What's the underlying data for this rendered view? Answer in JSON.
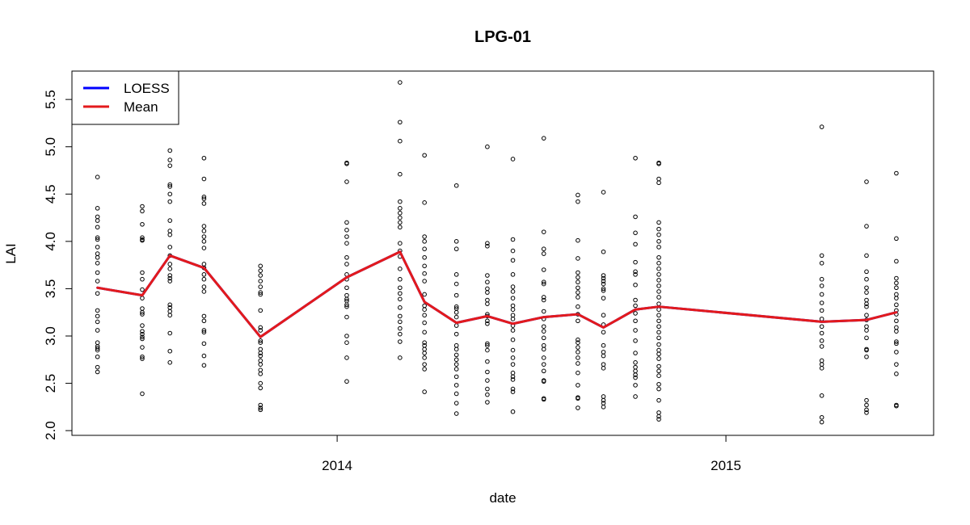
{
  "chart_data": {
    "type": "scatter",
    "title": "LPG-01",
    "xlabel": "date",
    "ylabel": "LAI",
    "x_axis_type": "date",
    "xlim": [
      "2013-04-27",
      "2015-07-15"
    ],
    "ylim": [
      1.95,
      5.8
    ],
    "x_ticks": [
      {
        "date": "2014-01-01",
        "label": "2014"
      },
      {
        "date": "2015-01-01",
        "label": "2015"
      }
    ],
    "y_ticks": [
      {
        "value": 2.0,
        "label": "2.0"
      },
      {
        "value": 2.5,
        "label": "2.5"
      },
      {
        "value": 3.0,
        "label": "3.0"
      },
      {
        "value": 3.5,
        "label": "3.5"
      },
      {
        "value": 4.0,
        "label": "4.0"
      },
      {
        "value": 4.5,
        "label": "4.5"
      },
      {
        "value": 5.0,
        "label": "5.0"
      },
      {
        "value": 5.5,
        "label": "5.5"
      }
    ],
    "grid": false,
    "legend": {
      "position": "top-left",
      "entries": [
        {
          "label": "LOESS",
          "color": "#0000ff"
        },
        {
          "label": "Mean",
          "color": "#e31a1c"
        }
      ]
    },
    "series": [
      {
        "name": "LOESS",
        "kind": "line",
        "color": "#0000ff",
        "points": [
          {
            "x": "2013-05-21",
            "y": 3.51
          },
          {
            "x": "2013-07-02",
            "y": 3.43
          },
          {
            "x": "2013-07-28",
            "y": 3.85
          },
          {
            "x": "2013-08-29",
            "y": 3.72
          },
          {
            "x": "2013-10-21",
            "y": 2.99
          },
          {
            "x": "2014-01-10",
            "y": 3.62
          },
          {
            "x": "2014-03-01",
            "y": 3.89
          },
          {
            "x": "2014-03-24",
            "y": 3.36
          },
          {
            "x": "2014-04-23",
            "y": 3.14
          },
          {
            "x": "2014-05-22",
            "y": 3.21
          },
          {
            "x": "2014-06-15",
            "y": 3.13
          },
          {
            "x": "2014-07-14",
            "y": 3.2
          },
          {
            "x": "2014-08-15",
            "y": 3.23
          },
          {
            "x": "2014-09-08",
            "y": 3.09
          },
          {
            "x": "2014-10-08",
            "y": 3.28
          },
          {
            "x": "2014-10-30",
            "y": 3.31
          },
          {
            "x": "2015-04-01",
            "y": 3.15
          },
          {
            "x": "2015-05-13",
            "y": 3.17
          },
          {
            "x": "2015-06-10",
            "y": 3.25
          }
        ]
      },
      {
        "name": "Mean",
        "kind": "line",
        "color": "#e31a1c",
        "points": [
          {
            "x": "2013-05-21",
            "y": 3.51
          },
          {
            "x": "2013-07-02",
            "y": 3.43
          },
          {
            "x": "2013-07-28",
            "y": 3.85
          },
          {
            "x": "2013-08-29",
            "y": 3.72
          },
          {
            "x": "2013-10-21",
            "y": 2.99
          },
          {
            "x": "2014-01-10",
            "y": 3.62
          },
          {
            "x": "2014-03-01",
            "y": 3.89
          },
          {
            "x": "2014-03-24",
            "y": 3.36
          },
          {
            "x": "2014-04-23",
            "y": 3.14
          },
          {
            "x": "2014-05-22",
            "y": 3.21
          },
          {
            "x": "2014-06-15",
            "y": 3.13
          },
          {
            "x": "2014-07-14",
            "y": 3.2
          },
          {
            "x": "2014-08-15",
            "y": 3.23
          },
          {
            "x": "2014-09-08",
            "y": 3.09
          },
          {
            "x": "2014-10-08",
            "y": 3.28
          },
          {
            "x": "2014-10-30",
            "y": 3.31
          },
          {
            "x": "2015-04-01",
            "y": 3.15
          },
          {
            "x": "2015-05-13",
            "y": 3.17
          },
          {
            "x": "2015-06-10",
            "y": 3.25
          }
        ]
      },
      {
        "kind": "points",
        "color": "#000000",
        "groups": [
          {
            "x": "2013-05-21",
            "y": [
              4.68,
              4.35,
              4.26,
              4.22,
              4.15,
              4.04,
              4.02,
              3.94,
              3.87,
              3.83,
              3.77,
              3.67,
              3.58,
              3.45,
              3.27,
              3.21,
              3.15,
              3.06,
              2.93,
              2.89,
              2.87,
              2.85,
              2.78,
              2.67,
              2.62
            ]
          },
          {
            "x": "2013-07-02",
            "y": [
              4.37,
              4.32,
              4.18,
              4.04,
              4.02,
              4.01,
              3.67,
              3.6,
              3.49,
              3.4,
              3.29,
              3.25,
              3.23,
              3.11,
              3.05,
              3.02,
              2.99,
              2.97,
              2.88,
              2.78,
              2.76,
              2.39
            ]
          },
          {
            "x": "2013-07-28",
            "y": [
              4.96,
              4.86,
              4.8,
              4.6,
              4.58,
              4.5,
              4.42,
              4.22,
              4.11,
              4.07,
              3.94,
              3.85,
              3.76,
              3.71,
              3.64,
              3.61,
              3.58,
              3.33,
              3.3,
              3.26,
              3.22,
              3.03,
              2.84,
              2.72
            ]
          },
          {
            "x": "2013-08-29",
            "y": [
              4.88,
              4.66,
              4.47,
              4.45,
              4.4,
              4.16,
              4.11,
              4.05,
              4.0,
              3.93,
              3.76,
              3.72,
              3.65,
              3.6,
              3.52,
              3.47,
              3.21,
              3.16,
              3.06,
              3.04,
              2.92,
              2.79,
              2.69
            ]
          },
          {
            "x": "2013-10-21",
            "y": [
              3.74,
              3.69,
              3.64,
              3.58,
              3.52,
              3.46,
              3.44,
              3.27,
              3.09,
              3.06,
              2.95,
              2.93,
              2.86,
              2.82,
              2.79,
              2.74,
              2.7,
              2.64,
              2.6,
              2.5,
              2.45,
              2.27,
              2.24,
              2.22
            ]
          },
          {
            "x": "2014-01-10",
            "y": [
              4.83,
              4.82,
              4.63,
              4.2,
              4.12,
              4.05,
              3.98,
              3.83,
              3.76,
              3.65,
              3.6,
              3.51,
              3.43,
              3.39,
              3.37,
              3.33,
              3.31,
              3.2,
              3.0,
              2.93,
              2.77,
              2.52
            ]
          },
          {
            "x": "2014-03-01",
            "y": [
              5.68,
              5.26,
              5.06,
              4.71,
              4.42,
              4.35,
              4.3,
              4.25,
              4.2,
              4.15,
              3.98,
              3.9,
              3.84,
              3.71,
              3.6,
              3.51,
              3.45,
              3.39,
              3.3,
              3.21,
              3.15,
              3.08,
              3.02,
              2.94,
              2.77
            ]
          },
          {
            "x": "2014-03-24",
            "y": [
              4.91,
              4.41,
              4.05,
              4.0,
              3.92,
              3.83,
              3.74,
              3.66,
              3.58,
              3.44,
              3.32,
              3.28,
              3.22,
              3.14,
              3.04,
              2.93,
              2.9,
              2.86,
              2.82,
              2.77,
              2.7,
              2.65,
              2.41
            ]
          },
          {
            "x": "2014-04-23",
            "y": [
              4.59,
              4.0,
              3.92,
              3.65,
              3.55,
              3.43,
              3.31,
              3.29,
              3.25,
              3.2,
              3.11,
              3.02,
              2.9,
              2.86,
              2.8,
              2.75,
              2.7,
              2.65,
              2.57,
              2.48,
              2.39,
              2.29,
              2.18
            ]
          },
          {
            "x": "2014-05-22",
            "y": [
              5.0,
              3.98,
              3.95,
              3.64,
              3.57,
              3.5,
              3.46,
              3.38,
              3.34,
              3.23,
              3.21,
              3.16,
              3.13,
              2.92,
              2.9,
              2.85,
              2.73,
              2.62,
              2.53,
              2.44,
              2.38,
              2.3
            ]
          },
          {
            "x": "2014-06-15",
            "y": [
              4.87,
              4.02,
              3.9,
              3.8,
              3.65,
              3.52,
              3.47,
              3.4,
              3.32,
              3.28,
              3.22,
              3.18,
              3.11,
              3.06,
              2.96,
              2.85,
              2.77,
              2.7,
              2.61,
              2.57,
              2.54,
              2.44,
              2.41,
              2.2
            ]
          },
          {
            "x": "2014-07-14",
            "y": [
              5.09,
              4.1,
              3.92,
              3.87,
              3.7,
              3.57,
              3.55,
              3.41,
              3.38,
              3.26,
              3.18,
              3.1,
              3.05,
              2.98,
              2.9,
              2.86,
              2.77,
              2.7,
              2.63,
              2.53,
              2.52,
              2.34,
              2.33
            ]
          },
          {
            "x": "2014-08-15",
            "y": [
              4.49,
              4.42,
              4.01,
              3.82,
              3.67,
              3.62,
              3.57,
              3.51,
              3.46,
              3.41,
              3.31,
              3.23,
              3.16,
              2.96,
              2.93,
              2.88,
              2.83,
              2.77,
              2.71,
              2.61,
              2.48,
              2.35,
              2.34,
              2.24
            ]
          },
          {
            "x": "2014-09-08",
            "y": [
              4.52,
              3.89,
              3.64,
              3.61,
              3.58,
              3.55,
              3.5,
              3.48,
              3.4,
              3.22,
              3.12,
              3.04,
              2.9,
              2.83,
              2.79,
              2.7,
              2.66,
              2.36,
              2.32,
              2.29,
              2.25
            ]
          },
          {
            "x": "2014-10-08",
            "y": [
              4.88,
              4.26,
              4.09,
              3.97,
              3.78,
              3.68,
              3.65,
              3.54,
              3.38,
              3.32,
              3.24,
              3.16,
              3.06,
              2.95,
              2.82,
              2.72,
              2.67,
              2.63,
              2.59,
              2.56,
              2.48,
              2.36
            ]
          },
          {
            "x": "2014-10-30",
            "y": [
              4.83,
              4.82,
              4.66,
              4.62,
              4.2,
              4.13,
              4.07,
              4.0,
              3.94,
              3.83,
              3.77,
              3.71,
              3.65,
              3.59,
              3.53,
              3.47,
              3.41,
              3.34,
              3.28,
              3.22,
              3.16,
              3.1,
              3.04,
              2.98,
              2.91,
              2.85,
              2.81,
              2.76,
              2.68,
              2.63,
              2.58,
              2.49,
              2.44,
              2.32,
              2.19,
              2.15,
              2.12
            ]
          },
          {
            "x": "2015-04-01",
            "y": [
              5.21,
              3.85,
              3.77,
              3.6,
              3.53,
              3.44,
              3.35,
              3.27,
              3.18,
              3.1,
              3.03,
              2.95,
              2.89,
              2.74,
              2.7,
              2.66,
              2.37,
              2.14,
              2.09
            ]
          },
          {
            "x": "2015-05-13",
            "y": [
              4.63,
              4.16,
              3.85,
              3.68,
              3.6,
              3.51,
              3.46,
              3.38,
              3.34,
              3.31,
              3.22,
              3.17,
              3.1,
              3.06,
              2.98,
              2.86,
              2.85,
              2.78,
              2.32,
              2.27,
              2.22,
              2.19
            ]
          },
          {
            "x": "2015-06-10",
            "y": [
              4.72,
              4.03,
              3.79,
              3.61,
              3.56,
              3.51,
              3.44,
              3.4,
              3.33,
              3.27,
              3.23,
              3.16,
              3.09,
              3.05,
              2.94,
              2.92,
              2.83,
              2.7,
              2.6,
              2.27,
              2.26
            ]
          }
        ]
      }
    ]
  }
}
